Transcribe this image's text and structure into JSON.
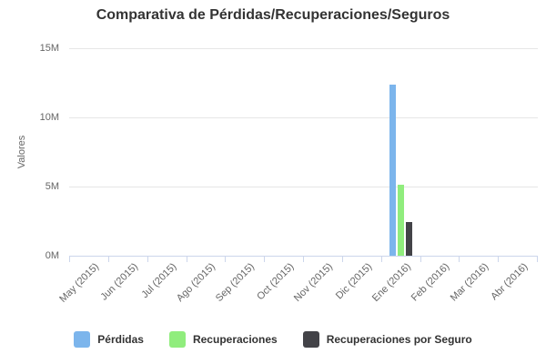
{
  "chart_data": {
    "type": "bar",
    "title": "Comparativa de Pérdidas/Recuperaciones/Seguros",
    "xlabel": "",
    "ylabel": "Valores",
    "ylim": [
      0,
      15000000
    ],
    "ytick_values": [
      0,
      5000000,
      10000000,
      15000000
    ],
    "ytick_labels": [
      "0M",
      "5M",
      "10M",
      "15M"
    ],
    "grid": true,
    "legend_position": "bottom",
    "categories": [
      "May (2015)",
      "Jun (2015)",
      "Jul (2015)",
      "Ago (2015)",
      "Sep (2015)",
      "Oct (2015)",
      "Nov (2015)",
      "Dic (2015)",
      "Ene (2016)",
      "Feb (2016)",
      "Mar (2016)",
      "Abr (2016)"
    ],
    "series": [
      {
        "name": "Pérdidas",
        "color": "#7cb5ec",
        "values": [
          0,
          0,
          0,
          0,
          0,
          0,
          0,
          0,
          12400000,
          0,
          0,
          0
        ]
      },
      {
        "name": "Recuperaciones",
        "color": "#90ed7d",
        "values": [
          0,
          0,
          0,
          0,
          0,
          0,
          0,
          0,
          5100000,
          0,
          0,
          0
        ]
      },
      {
        "name": "Recuperaciones por Seguro",
        "color": "#434348",
        "values": [
          0,
          0,
          0,
          0,
          0,
          0,
          0,
          0,
          2450000,
          0,
          0,
          0
        ]
      }
    ]
  },
  "colors": {
    "title_text": "#333333",
    "axis_label_text": "#666666",
    "gridline": "#e6e6e6",
    "axis_line": "#ccd6eb",
    "background": "#ffffff",
    "legend_text": "#333333"
  }
}
